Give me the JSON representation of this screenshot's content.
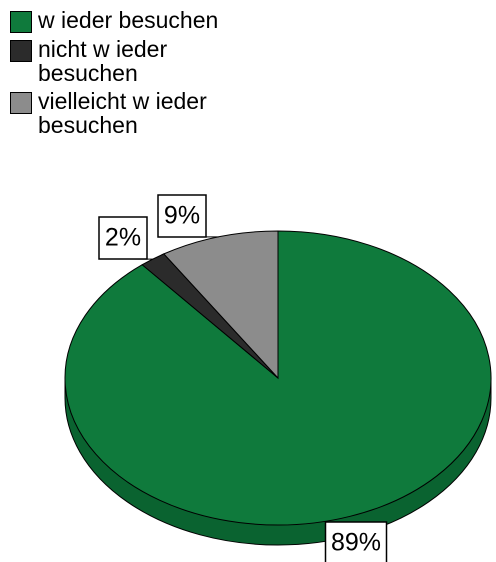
{
  "chart_data": {
    "type": "pie",
    "categories": [
      "w ieder besuchen",
      "nicht w ieder besuchen",
      "vielleicht w ieder besuchen"
    ],
    "values": [
      89,
      2,
      9
    ],
    "value_labels": [
      "89%",
      "2%",
      "9%"
    ],
    "colors": [
      "#0f7a3c",
      "#2b2b2b",
      "#8c8c8c"
    ],
    "legend": "top-left"
  }
}
